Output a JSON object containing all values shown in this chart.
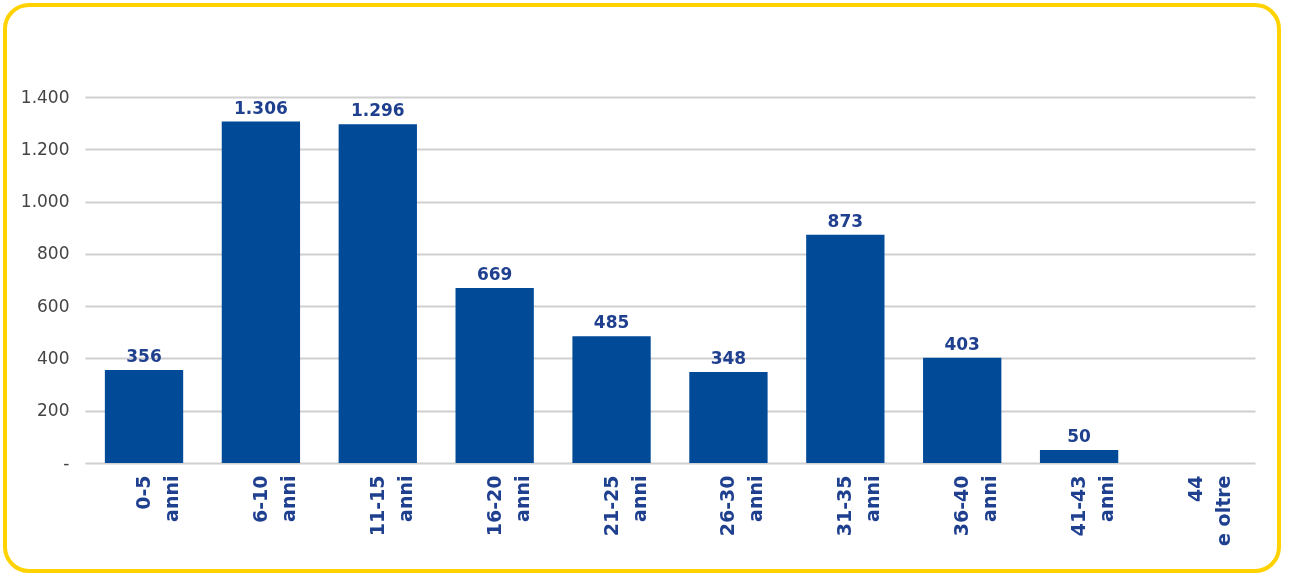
{
  "chart_data": {
    "type": "bar",
    "categories": [
      "0-5 anni",
      "6-10 anni",
      "11-15 anni",
      "16-20 anni",
      "21-25 anni",
      "26-30 anni",
      "31-35 anni",
      "36-40 anni",
      "41-43 anni",
      "44 e oltre"
    ],
    "values": [
      356,
      1306,
      1296,
      669,
      485,
      348,
      873,
      403,
      50,
      null
    ],
    "value_labels": [
      "356",
      "1.306",
      "1.296",
      "669",
      "485",
      "348",
      "873",
      "403",
      "50",
      null
    ],
    "color": "#004a98",
    "ylim": [
      0,
      1400
    ],
    "yticks": [
      {
        "value": 0,
        "label": "-"
      },
      200,
      400,
      600,
      800,
      {
        "value": 1000,
        "label": "1.000"
      },
      {
        "value": 1200,
        "label": "1.200"
      },
      {
        "value": 1400,
        "label": "1.400"
      }
    ],
    "grid": "y"
  }
}
